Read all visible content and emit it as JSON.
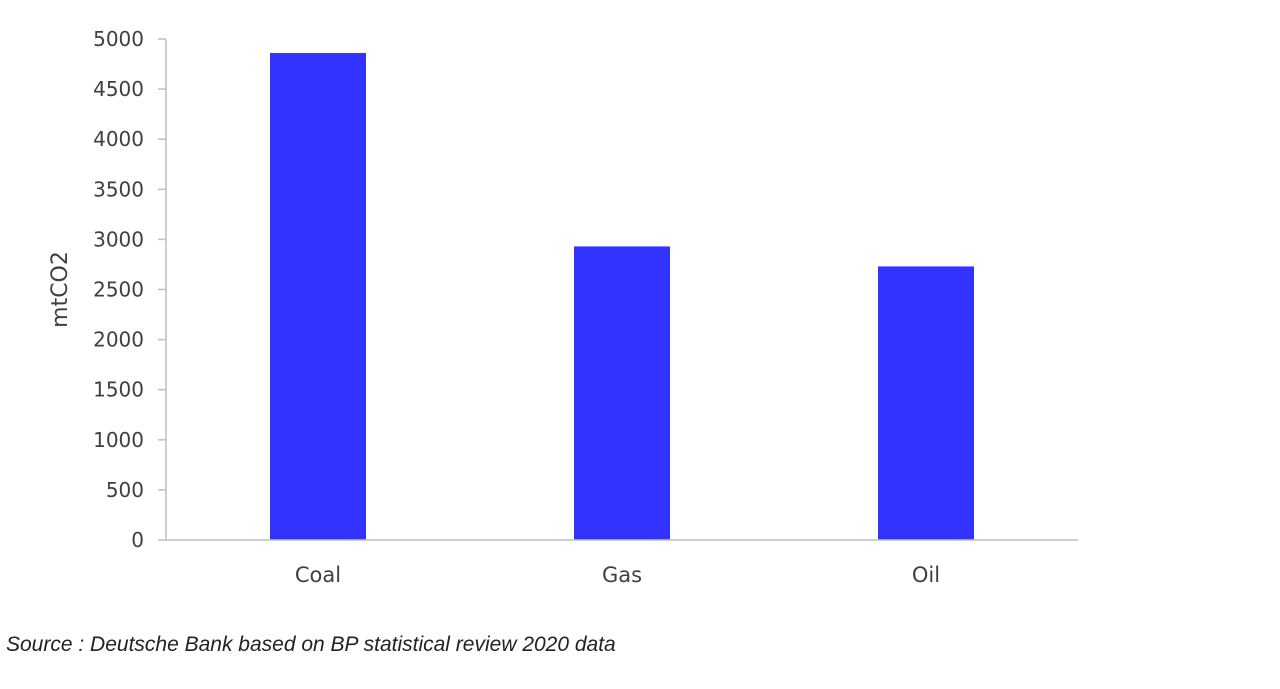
{
  "chart_data": {
    "type": "bar",
    "title": "",
    "xlabel": "",
    "ylabel": "mtCO2",
    "categories": [
      "Coal",
      "Gas",
      "Oil"
    ],
    "values": [
      4860,
      2930,
      2730
    ],
    "ylim": [
      0,
      5000
    ],
    "yticks": [
      "0",
      "500",
      "1000",
      "1500",
      "2000",
      "2500",
      "3000",
      "3500",
      "4000",
      "4500",
      "5000"
    ],
    "bar_color": "#3333ff",
    "grid": false,
    "legend": "none"
  },
  "source": "Source : Deutsche Bank based on BP statistical review 2020 data"
}
